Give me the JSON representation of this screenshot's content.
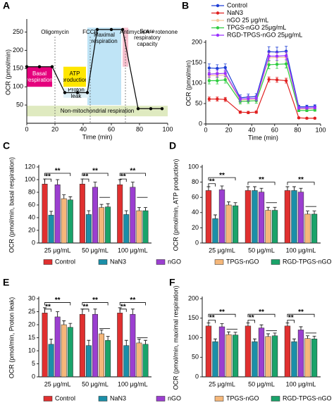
{
  "chart_data": [
    {
      "panel": "A",
      "type": "line",
      "x_label": "Time (min)",
      "y_label": "OCR (pmol/min)",
      "xlim": [
        0,
        100
      ],
      "ylim": [
        0,
        280
      ],
      "xticks": [
        0,
        20,
        40,
        60,
        80,
        100
      ],
      "yticks": [
        50,
        100,
        150,
        200,
        250
      ],
      "x": [
        0,
        9,
        18,
        27,
        36,
        43,
        50,
        60,
        68,
        79,
        88,
        96
      ],
      "series": [
        {
          "color": "#000000",
          "values": [
            155,
            155,
            155,
            84,
            84,
            84,
            257,
            257,
            257,
            40,
            40,
            40
          ]
        }
      ],
      "events": [
        {
          "label": "Oligomycin",
          "x": 20
        },
        {
          "label": "FCCP",
          "x": 45
        },
        {
          "label": "Antimycin A + rotenone",
          "x": 70
        }
      ],
      "regions": [
        {
          "label": "Non-mitochondrial respiration",
          "color": "#dfeac0",
          "x": [
            0,
            100
          ],
          "y": [
            19,
            48
          ]
        },
        {
          "label": "Maximal respiration",
          "color": "#bfe4f6",
          "x": [
            43,
            67
          ],
          "y": [
            50,
            262
          ]
        },
        {
          "label": "Basal respiration",
          "color": "#e5007d",
          "x": [
            0,
            18
          ],
          "y": [
            100,
            155
          ]
        },
        {
          "label": "ATP production",
          "color": "#ffe600",
          "x": [
            26,
            42
          ],
          "y": [
            100,
            155
          ]
        },
        {
          "label": "Proton leak",
          "color": "#dff0f7",
          "x": [
            26,
            44
          ],
          "y": [
            70,
            96
          ]
        },
        {
          "label": "Spare respiratory capacity",
          "color": "#f7c1cf",
          "x": [
            68,
            72
          ],
          "y": [
            155,
            262
          ]
        }
      ]
    },
    {
      "panel": "B",
      "type": "line",
      "x_label": "Time (min)",
      "y_label": "OCR (pmol/min)",
      "xlim": [
        0,
        100
      ],
      "ylim": [
        0,
        200
      ],
      "xticks": [
        0,
        20,
        40,
        60,
        80,
        100
      ],
      "yticks": [
        0,
        50,
        100,
        150,
        200
      ],
      "x": [
        3,
        10,
        17,
        30,
        37,
        44,
        55,
        62,
        70,
        81,
        88,
        95
      ],
      "series": [
        {
          "name": "Control",
          "color": "#1f3fd6",
          "values": [
            137,
            136,
            138,
            64,
            66,
            67,
            177,
            176,
            178,
            42,
            42,
            43
          ],
          "errors": [
            10,
            9,
            9,
            7,
            7,
            7,
            12,
            12,
            12,
            4,
            4,
            4
          ]
        },
        {
          "name": "NaN3",
          "color": "#e02020",
          "values": [
            61,
            61,
            60,
            29,
            28,
            29,
            109,
            108,
            106,
            15,
            14,
            14
          ],
          "errors": [
            5,
            5,
            5,
            3,
            3,
            3,
            6,
            6,
            6,
            2,
            2,
            2
          ]
        },
        {
          "name": "nGO 25 μg/mL",
          "color": "#f3c79b",
          "values": [
            118,
            119,
            120,
            58,
            60,
            60,
            162,
            163,
            163,
            36,
            37,
            37
          ],
          "errors": [
            8,
            8,
            8,
            6,
            6,
            6,
            10,
            10,
            10,
            3,
            3,
            3
          ]
        },
        {
          "name": "TPGS-nGO 25μg/mL",
          "color": "#2ecc40",
          "values": [
            106,
            106,
            108,
            55,
            56,
            57,
            145,
            146,
            147,
            33,
            33,
            34
          ],
          "errors": [
            8,
            8,
            8,
            6,
            6,
            6,
            10,
            10,
            10,
            3,
            3,
            3
          ]
        },
        {
          "name": "RGD-TPGS-nGO 25μg/mL",
          "color": "#9b30ff",
          "values": [
            122,
            123,
            124,
            61,
            62,
            63,
            166,
            166,
            167,
            39,
            39,
            40
          ],
          "errors": [
            8,
            8,
            8,
            6,
            6,
            6,
            10,
            10,
            10,
            3,
            3,
            3
          ]
        }
      ]
    },
    {
      "panel": "C",
      "type": "bar",
      "y_label": "OCR (pmol/min, basal respiration)",
      "categories": [
        "25 μg/mL",
        "50 μg/mL",
        "100 μg/mL"
      ],
      "ylim": [
        0,
        120
      ],
      "yticks": [
        0,
        20,
        40,
        60,
        80,
        100,
        120
      ],
      "series": [
        {
          "name": "Control",
          "color": "#e03030",
          "values": [
            93,
            93,
            92
          ],
          "errors": [
            8,
            8,
            8
          ]
        },
        {
          "name": "NaN3",
          "color": "#1b8fa8",
          "values": [
            44,
            45,
            45
          ],
          "errors": [
            6,
            6,
            6
          ]
        },
        {
          "name": "nGO",
          "color": "#9b3fd0",
          "values": [
            92,
            88,
            88
          ],
          "errors": [
            8,
            8,
            8
          ]
        },
        {
          "name": "TPGS-nGO",
          "color": "#f5b77a",
          "values": [
            70,
            56,
            51
          ],
          "errors": [
            6,
            5,
            5
          ]
        },
        {
          "name": "RGD-TPGS-nGO",
          "color": "#1aa36a",
          "values": [
            68,
            57,
            51
          ],
          "errors": [
            5,
            5,
            5
          ]
        }
      ],
      "significance": [
        {
          "group": 0,
          "from": 0,
          "to": 1,
          "y": 101,
          "label": "**"
        },
        {
          "group": 0,
          "from": 0,
          "to": 4,
          "y": 110,
          "label": "**"
        },
        {
          "group": 1,
          "from": 0,
          "to": 1,
          "y": 101,
          "label": "**"
        },
        {
          "group": 1,
          "from": 0,
          "to": 4,
          "y": 110,
          "label": "**"
        },
        {
          "group": 1,
          "from": 3,
          "to": 4,
          "y": 72
        },
        {
          "group": 2,
          "from": 0,
          "to": 1,
          "y": 101,
          "label": "**"
        },
        {
          "group": 2,
          "from": 0,
          "to": 4,
          "y": 110,
          "label": "**"
        },
        {
          "group": 2,
          "from": 3,
          "to": 4,
          "y": 72
        }
      ]
    },
    {
      "panel": "D",
      "type": "bar",
      "y_label": "OCR (pmol/min, ATP production)",
      "categories": [
        "25 μg/mL",
        "50 μg/mL",
        "100 μg/mL"
      ],
      "ylim": [
        0,
        100
      ],
      "yticks": [
        0,
        20,
        40,
        60,
        80,
        100
      ],
      "series": [
        {
          "name": "Control",
          "color": "#e03030",
          "values": [
            69,
            69,
            69
          ],
          "errors": [
            5,
            5,
            5
          ]
        },
        {
          "name": "NaN3",
          "color": "#1b8fa8",
          "values": [
            32,
            69,
            69
          ],
          "errors": [
            5,
            5,
            5
          ]
        },
        {
          "name": "nGO",
          "color": "#9b3fd0",
          "values": [
            70,
            67,
            67
          ],
          "errors": [
            5,
            5,
            5
          ]
        },
        {
          "name": "TPGS-nGO",
          "color": "#f5b77a",
          "values": [
            50,
            43,
            38
          ],
          "errors": [
            4,
            4,
            4
          ]
        },
        {
          "name": "RGD-TPGS-nGO",
          "color": "#1aa36a",
          "values": [
            49,
            43,
            38
          ],
          "errors": [
            4,
            4,
            4
          ]
        }
      ],
      "significance": [
        {
          "group": 0,
          "from": 0,
          "to": 1,
          "y": 78,
          "label": "**"
        },
        {
          "group": 0,
          "from": 0,
          "to": 4,
          "y": 86,
          "label": "**"
        },
        {
          "group": 1,
          "from": 0,
          "to": 4,
          "y": 80,
          "label": "**"
        },
        {
          "group": 1,
          "from": 3,
          "to": 4,
          "y": 53
        },
        {
          "group": 2,
          "from": 0,
          "to": 4,
          "y": 80,
          "label": "**"
        },
        {
          "group": 2,
          "from": 3,
          "to": 4,
          "y": 48
        }
      ]
    },
    {
      "panel": "E",
      "type": "bar",
      "y_label": "OCR (pmol/min, Proton leak)",
      "categories": [
        "25 μg/mL",
        "50 μg/mL",
        "100 μg/mL"
      ],
      "ylim": [
        0,
        30
      ],
      "yticks": [
        0,
        5,
        10,
        15,
        20,
        25,
        30
      ],
      "series": [
        {
          "name": "Control",
          "color": "#e03030",
          "values": [
            24.5,
            24,
            24.5
          ],
          "errors": [
            2,
            2,
            2
          ]
        },
        {
          "name": "NaN3",
          "color": "#1b8fa8",
          "values": [
            12.5,
            12,
            12
          ],
          "errors": [
            2,
            2,
            2
          ]
        },
        {
          "name": "nGO",
          "color": "#9b3fd0",
          "values": [
            23,
            24,
            24
          ],
          "errors": [
            2,
            2,
            2
          ]
        },
        {
          "name": "TPGS-nGO",
          "color": "#f5b77a",
          "values": [
            20,
            16.5,
            13
          ],
          "errors": [
            1.5,
            1.5,
            1.5
          ]
        },
        {
          "name": "RGD-TPGS-nGO",
          "color": "#1aa36a",
          "values": [
            19,
            14,
            12.5
          ],
          "errors": [
            1.5,
            1.5,
            1.5
          ]
        }
      ],
      "significance": [
        {
          "group": 0,
          "from": 0,
          "to": 1,
          "y": 26,
          "label": "**"
        },
        {
          "group": 0,
          "from": 0,
          "to": 4,
          "y": 28.5,
          "label": "**"
        },
        {
          "group": 1,
          "from": 0,
          "to": 1,
          "y": 26,
          "label": "**"
        },
        {
          "group": 1,
          "from": 0,
          "to": 4,
          "y": 28.5,
          "label": "**"
        },
        {
          "group": 1,
          "from": 3,
          "to": 4,
          "y": 18.5
        },
        {
          "group": 2,
          "from": 0,
          "to": 1,
          "y": 26,
          "label": "**"
        },
        {
          "group": 2,
          "from": 0,
          "to": 4,
          "y": 28.5,
          "label": "**"
        },
        {
          "group": 2,
          "from": 3,
          "to": 4,
          "y": 15
        }
      ]
    },
    {
      "panel": "F",
      "type": "bar",
      "y_label": "OCR (pmol/min, maximal respiration)",
      "categories": [
        "25 μg/mL",
        "50 μg/mL",
        "100 μg/mL"
      ],
      "ylim": [
        0,
        200
      ],
      "yticks": [
        0,
        50,
        100,
        150,
        200
      ],
      "series": [
        {
          "name": "Control",
          "color": "#e03030",
          "values": [
            130,
            130,
            130
          ],
          "errors": [
            8,
            8,
            8
          ]
        },
        {
          "name": "NaN3",
          "color": "#1b8fa8",
          "values": [
            90,
            90,
            90
          ],
          "errors": [
            7,
            7,
            7
          ]
        },
        {
          "name": "nGO",
          "color": "#9b3fd0",
          "values": [
            128,
            125,
            120
          ],
          "errors": [
            8,
            8,
            8
          ]
        },
        {
          "name": "TPGS-nGO",
          "color": "#f5b77a",
          "values": [
            108,
            103,
            98
          ],
          "errors": [
            7,
            7,
            7
          ]
        },
        {
          "name": "RGD-TPGS-nGO",
          "color": "#1aa36a",
          "values": [
            107,
            105,
            97
          ],
          "errors": [
            7,
            7,
            7
          ]
        }
      ],
      "significance": [
        {
          "group": 0,
          "from": 0,
          "to": 1,
          "y": 145,
          "label": "**"
        },
        {
          "group": 0,
          "from": 0,
          "to": 4,
          "y": 160,
          "label": "**"
        },
        {
          "group": 0,
          "from": 3,
          "to": 4,
          "y": 122
        },
        {
          "group": 1,
          "from": 0,
          "to": 1,
          "y": 145,
          "label": "**"
        },
        {
          "group": 1,
          "from": 0,
          "to": 4,
          "y": 160,
          "label": "**"
        },
        {
          "group": 1,
          "from": 3,
          "to": 4,
          "y": 118
        },
        {
          "group": 2,
          "from": 0,
          "to": 1,
          "y": 145,
          "label": "**"
        },
        {
          "group": 2,
          "from": 0,
          "to": 4,
          "y": 160,
          "label": "**"
        },
        {
          "group": 2,
          "from": 3,
          "to": 4,
          "y": 112
        }
      ]
    }
  ]
}
